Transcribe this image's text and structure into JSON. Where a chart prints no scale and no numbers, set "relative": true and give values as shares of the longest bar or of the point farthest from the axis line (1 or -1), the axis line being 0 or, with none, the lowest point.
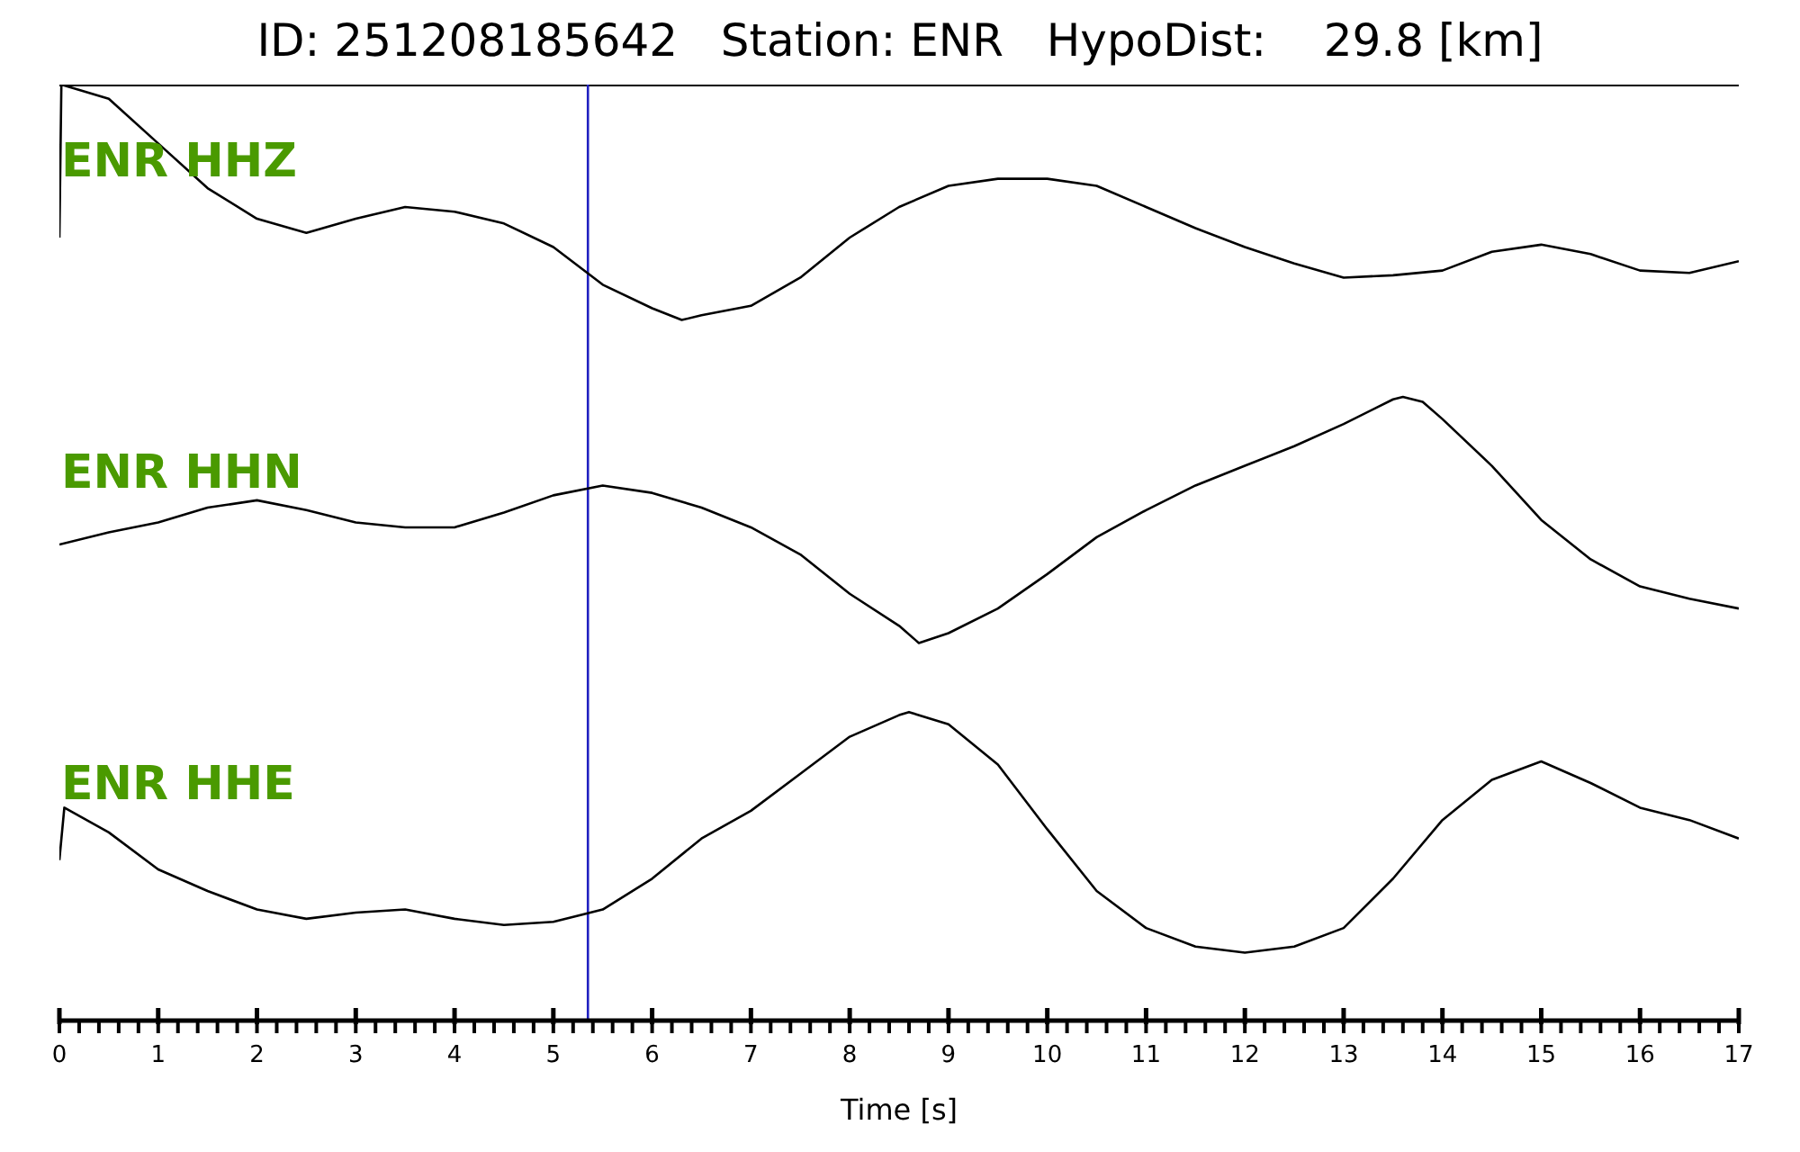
{
  "chart_data": [
    {
      "type": "line",
      "title": "ID: 251208185642   Station: ENR   HypoDist:    29.8 [km]",
      "relative": true,
      "xlim": [
        0,
        17
      ],
      "tick_labels": false,
      "x": [
        0,
        0.02,
        0.5,
        1,
        1.5,
        2,
        2.5,
        3,
        3.5,
        4,
        4.5,
        5,
        5.5,
        6,
        6.3,
        6.5,
        7,
        7.5,
        8,
        8.5,
        9,
        9.5,
        10,
        10.5,
        11,
        11.5,
        12,
        12.5,
        13,
        13.5,
        14,
        14.5,
        15,
        15.5,
        16,
        16.5,
        17
      ],
      "series": [
        {
          "name": "ENR HHZ",
          "color": "#000000",
          "values": [
            0.35,
            1.0,
            0.94,
            0.75,
            0.56,
            0.43,
            0.37,
            0.43,
            0.48,
            0.46,
            0.41,
            0.31,
            0.15,
            0.05,
            0,
            0.02,
            0.06,
            0.18,
            0.35,
            0.48,
            0.57,
            0.6,
            0.6,
            0.57,
            0.48,
            0.39,
            0.31,
            0.24,
            0.18,
            0.19,
            0.21,
            0.29,
            0.32,
            0.28,
            0.21,
            0.2,
            0.25
          ]
        }
      ],
      "ref_lines": [
        {
          "axis": "x",
          "value": 5.35,
          "color": "#2020c0"
        }
      ]
    },
    {
      "type": "line",
      "relative": true,
      "xlim": [
        0,
        17
      ],
      "tick_labels": false,
      "x": [
        0,
        0.5,
        1,
        1.5,
        2,
        2.5,
        3,
        3.5,
        4,
        4.5,
        5,
        5.5,
        6,
        6.5,
        7,
        7.5,
        8,
        8.5,
        8.7,
        9,
        9.5,
        10,
        10.5,
        11,
        11.5,
        12,
        12.5,
        13,
        13.5,
        13.6,
        13.8,
        14,
        14.5,
        15,
        15.5,
        16,
        16.5,
        17
      ],
      "series": [
        {
          "name": "ENR HHN",
          "color": "#000000",
          "values": [
            0.4,
            0.45,
            0.49,
            0.55,
            0.58,
            0.54,
            0.49,
            0.47,
            0.47,
            0.53,
            0.6,
            0.64,
            0.61,
            0.55,
            0.47,
            0.36,
            0.2,
            0.07,
            0,
            0.04,
            0.14,
            0.28,
            0.43,
            0.54,
            0.64,
            0.72,
            0.8,
            0.89,
            0.99,
            1.0,
            0.98,
            0.91,
            0.72,
            0.5,
            0.34,
            0.23,
            0.18,
            0.14
          ]
        }
      ],
      "ref_lines": [
        {
          "axis": "x",
          "value": 5.35,
          "color": "#2020c0"
        }
      ]
    },
    {
      "type": "line",
      "relative": true,
      "xlim": [
        0,
        17
      ],
      "tick_labels": "x",
      "xlabel": "Time [s]",
      "x": [
        0,
        0.05,
        0.5,
        1,
        1.5,
        2,
        2.5,
        3,
        3.5,
        4,
        4.5,
        5,
        5.5,
        6,
        6.5,
        7,
        7.5,
        8,
        8.5,
        8.6,
        9,
        9.5,
        10,
        10.5,
        11,
        11.5,
        12,
        12.5,
        13,
        13.5,
        14,
        14.5,
        15,
        15.5,
        16,
        16.5,
        17
      ],
      "series": [
        {
          "name": "ENR HHE",
          "color": "#000000",
          "values": [
            0.52,
            0.69,
            0.61,
            0.49,
            0.42,
            0.36,
            0.33,
            0.35,
            0.36,
            0.33,
            0.31,
            0.32,
            0.36,
            0.46,
            0.59,
            0.68,
            0.8,
            0.92,
            0.99,
            1.0,
            0.96,
            0.83,
            0.62,
            0.42,
            0.3,
            0.24,
            0.22,
            0.24,
            0.3,
            0.46,
            0.65,
            0.78,
            0.84,
            0.77,
            0.69,
            0.65,
            0.59
          ]
        }
      ],
      "xticks": [
        0,
        {
          "value": 0.2,
          "label": null
        },
        {
          "value": 0.4,
          "label": null
        },
        {
          "value": 0.6,
          "label": null
        },
        {
          "value": 0.8,
          "label": null
        },
        1,
        {
          "value": 1.2,
          "label": null
        },
        {
          "value": 1.4,
          "label": null
        },
        {
          "value": 1.6,
          "label": null
        },
        {
          "value": 1.8,
          "label": null
        },
        2,
        {
          "value": 2.2,
          "label": null
        },
        {
          "value": 2.4,
          "label": null
        },
        {
          "value": 2.6,
          "label": null
        },
        {
          "value": 2.8,
          "label": null
        },
        3,
        {
          "value": 3.2,
          "label": null
        },
        {
          "value": 3.4,
          "label": null
        },
        {
          "value": 3.6,
          "label": null
        },
        {
          "value": 3.8,
          "label": null
        },
        4,
        {
          "value": 4.2,
          "label": null
        },
        {
          "value": 4.4,
          "label": null
        },
        {
          "value": 4.6,
          "label": null
        },
        {
          "value": 4.8,
          "label": null
        },
        5,
        {
          "value": 5.2,
          "label": null
        },
        {
          "value": 5.4,
          "label": null
        },
        {
          "value": 5.6,
          "label": null
        },
        {
          "value": 5.8,
          "label": null
        },
        6,
        {
          "value": 6.2,
          "label": null
        },
        {
          "value": 6.4,
          "label": null
        },
        {
          "value": 6.6,
          "label": null
        },
        {
          "value": 6.8,
          "label": null
        },
        7,
        {
          "value": 7.2,
          "label": null
        },
        {
          "value": 7.4,
          "label": null
        },
        {
          "value": 7.6,
          "label": null
        },
        {
          "value": 7.8,
          "label": null
        },
        8,
        {
          "value": 8.2,
          "label": null
        },
        {
          "value": 8.4,
          "label": null
        },
        {
          "value": 8.6,
          "label": null
        },
        {
          "value": 8.8,
          "label": null
        },
        9,
        {
          "value": 9.2,
          "label": null
        },
        {
          "value": 9.4,
          "label": null
        },
        {
          "value": 9.6,
          "label": null
        },
        {
          "value": 9.8,
          "label": null
        },
        10,
        {
          "value": 10.2,
          "label": null
        },
        {
          "value": 10.4,
          "label": null
        },
        {
          "value": 10.6,
          "label": null
        },
        {
          "value": 10.8,
          "label": null
        },
        11,
        {
          "value": 11.2,
          "label": null
        },
        {
          "value": 11.4,
          "label": null
        },
        {
          "value": 11.6,
          "label": null
        },
        {
          "value": 11.8,
          "label": null
        },
        12,
        {
          "value": 12.2,
          "label": null
        },
        {
          "value": 12.4,
          "label": null
        },
        {
          "value": 12.6,
          "label": null
        },
        {
          "value": 12.8,
          "label": null
        },
        13,
        {
          "value": 13.2,
          "label": null
        },
        {
          "value": 13.4,
          "label": null
        },
        {
          "value": 13.6,
          "label": null
        },
        {
          "value": 13.8,
          "label": null
        },
        14,
        {
          "value": 14.2,
          "label": null
        },
        {
          "value": 14.4,
          "label": null
        },
        {
          "value": 14.6,
          "label": null
        },
        {
          "value": 14.8,
          "label": null
        },
        15,
        {
          "value": 15.2,
          "label": null
        },
        {
          "value": 15.4,
          "label": null
        },
        {
          "value": 15.6,
          "label": null
        },
        {
          "value": 15.8,
          "label": null
        },
        16,
        {
          "value": 16.2,
          "label": null
        },
        {
          "value": 16.4,
          "label": null
        },
        {
          "value": 16.6,
          "label": null
        },
        {
          "value": 16.8,
          "label": null
        },
        17
      ],
      "ref_lines": [
        {
          "axis": "x",
          "value": 5.35,
          "color": "#2020c0"
        }
      ]
    }
  ]
}
